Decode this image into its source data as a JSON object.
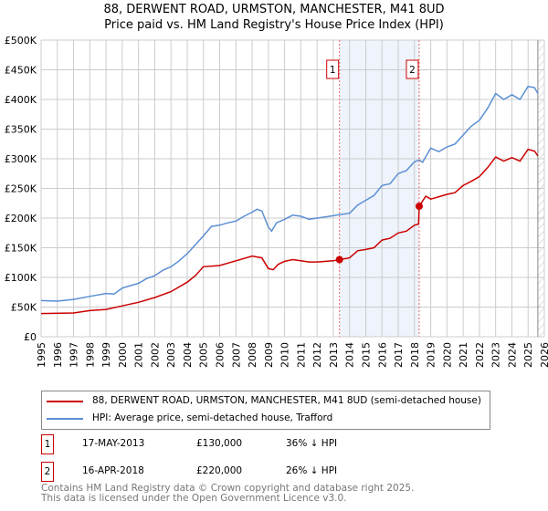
{
  "title": "88, DERWENT ROAD, URMSTON, MANCHESTER, M41 8UD",
  "subtitle": "Price paid vs. HM Land Registry's House Price Index (HPI)",
  "chart_data": {
    "type": "line",
    "xlim": [
      1995,
      2026
    ],
    "ylim": [
      0,
      500000
    ],
    "xticks": [
      "1995",
      "1996",
      "1997",
      "1998",
      "1999",
      "2000",
      "2001",
      "2002",
      "2003",
      "2004",
      "2005",
      "2006",
      "2007",
      "2008",
      "2009",
      "2010",
      "2011",
      "2012",
      "2013",
      "2014",
      "2015",
      "2016",
      "2017",
      "2018",
      "2019",
      "2020",
      "2021",
      "2022",
      "2023",
      "2024",
      "2025",
      "2026"
    ],
    "yticks": [
      {
        "v": 0,
        "label": "£0"
      },
      {
        "v": 50000,
        "label": "£50K"
      },
      {
        "v": 100000,
        "label": "£100K"
      },
      {
        "v": 150000,
        "label": "£150K"
      },
      {
        "v": 200000,
        "label": "£200K"
      },
      {
        "v": 250000,
        "label": "£250K"
      },
      {
        "v": 300000,
        "label": "£300K"
      },
      {
        "v": 350000,
        "label": "£350K"
      },
      {
        "v": 400000,
        "label": "£400K"
      },
      {
        "v": 450000,
        "label": "£450K"
      },
      {
        "v": 500000,
        "label": "£500K"
      }
    ],
    "shaded_range": [
      2013.38,
      2018.29
    ],
    "forecast_from": 2025.6,
    "series": [
      {
        "name": "88, DERWENT ROAD, URMSTON, MANCHESTER, M41 8UD (semi-detached house)",
        "color": "#cc0000",
        "x": [
          1995,
          1997,
          1998,
          1999,
          2000,
          2001,
          2002,
          2003,
          2004,
          2004.5,
          2005,
          2006,
          2007,
          2008,
          2008.6,
          2009,
          2009.3,
          2009.6,
          2010,
          2010.5,
          2011,
          2011.5,
          2012,
          2013,
          2013.38,
          2014,
          2014.5,
          2015,
          2015.5,
          2016,
          2016.5,
          2017,
          2017.5,
          2018,
          2018.25,
          2018.29,
          2018.7,
          2019,
          2019.5,
          2020,
          2020.5,
          2021,
          2021.5,
          2022,
          2022.5,
          2023,
          2023.5,
          2024,
          2024.5,
          2025,
          2025.4,
          2025.6
        ],
        "y": [
          39000,
          40000,
          44000,
          46000,
          52000,
          58000,
          66000,
          76000,
          92000,
          103000,
          118000,
          120000,
          128000,
          136000,
          133000,
          115000,
          113000,
          122000,
          127000,
          130000,
          128000,
          126000,
          126000,
          128000,
          130000,
          133000,
          145000,
          147000,
          150000,
          163000,
          166000,
          175000,
          178000,
          188000,
          190000,
          220000,
          237000,
          232000,
          236000,
          240000,
          243000,
          255000,
          262000,
          270000,
          285000,
          303000,
          296000,
          302000,
          296000,
          316000,
          313000,
          305000
        ]
      },
      {
        "name": "HPI: Average price, semi-detached house, Trafford",
        "color": "#5b8fd4",
        "x": [
          1995,
          1996,
          1997,
          1998,
          1999,
          1999.5,
          2000,
          2001,
          2001.5,
          2002,
          2002.5,
          2003,
          2003.5,
          2004,
          2004.5,
          2005,
          2005.5,
          2006,
          2006.5,
          2007,
          2007.5,
          2008,
          2008.3,
          2008.6,
          2009,
          2009.2,
          2009.5,
          2010,
          2010.5,
          2011,
          2011.5,
          2012,
          2012.5,
          2013,
          2013.4,
          2014,
          2014.5,
          2015,
          2015.5,
          2016,
          2016.5,
          2017,
          2017.5,
          2018,
          2018.3,
          2018.5,
          2019,
          2019.5,
          2020,
          2020.5,
          2021,
          2021.5,
          2022,
          2022.5,
          2023,
          2023.5,
          2024,
          2024.5,
          2025,
          2025.4,
          2025.6
        ],
        "y": [
          61000,
          60000,
          63000,
          68000,
          73000,
          72000,
          82000,
          90000,
          98000,
          103000,
          112000,
          118000,
          128000,
          140000,
          155000,
          170000,
          186000,
          188000,
          192000,
          195000,
          203000,
          210000,
          215000,
          212000,
          185000,
          178000,
          192000,
          198000,
          205000,
          203000,
          198000,
          200000,
          202000,
          204000,
          206000,
          208000,
          222000,
          230000,
          238000,
          255000,
          258000,
          275000,
          280000,
          295000,
          298000,
          294000,
          318000,
          312000,
          320000,
          325000,
          340000,
          355000,
          365000,
          385000,
          410000,
          400000,
          408000,
          400000,
          422000,
          420000,
          410000
        ]
      }
    ],
    "sales": [
      {
        "id": "1",
        "x": 2013.38,
        "y": 130000
      },
      {
        "id": "2",
        "x": 2018.29,
        "y": 220000
      }
    ]
  },
  "legend": {
    "red": "88, DERWENT ROAD, URMSTON, MANCHESTER, M41 8UD (semi-detached house)",
    "blue": "HPI: Average price, semi-detached house, Trafford"
  },
  "transactions": [
    {
      "id": "1",
      "date": "17-MAY-2013",
      "price": "£130,000",
      "hpi": "36% ↓ HPI"
    },
    {
      "id": "2",
      "date": "16-APR-2018",
      "price": "£220,000",
      "hpi": "26% ↓ HPI"
    }
  ],
  "footer": [
    "Contains HM Land Registry data © Crown copyright and database right 2025.",
    "This data is licensed under the Open Government Licence v3.0."
  ]
}
